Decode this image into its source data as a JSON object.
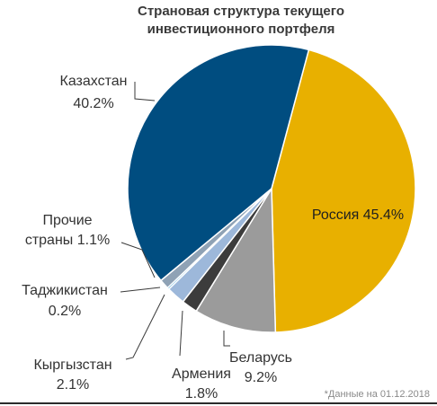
{
  "chart_data": {
    "type": "pie",
    "title_lines": [
      "Страновая структура текущего",
      "инвестиционного портфеля"
    ],
    "slices": [
      {
        "name": "Россия",
        "value": 45.4,
        "value_label": "45.4%",
        "color": "#E8B000"
      },
      {
        "name": "Беларусь",
        "value": 9.2,
        "value_label": "9.2%",
        "color": "#9B9B9B"
      },
      {
        "name": "Армения",
        "value": 1.8,
        "value_label": "1.8%",
        "color": "#3C3C3C"
      },
      {
        "name": "Кыргызстан",
        "value": 2.1,
        "value_label": "2.1%",
        "color": "#9DB8DA"
      },
      {
        "name": "Таджикистан",
        "value": 0.2,
        "value_label": "0.2%",
        "color": "#1E8FCF"
      },
      {
        "name": "Прочие страны",
        "value": 1.1,
        "value_label": "1.1%",
        "color": "#8FA2B5"
      },
      {
        "name": "Казахстан",
        "value": 40.2,
        "value_label": "40.2%",
        "color": "#004D80"
      }
    ],
    "label_texts": {
      "russia": "Россия 45.4%",
      "belarus_name": "Беларусь",
      "belarus_value": "9.2%",
      "armenia_name": "Армения",
      "armenia_value": "1.8%",
      "kyrgyzstan_name": "Кыргызстан",
      "kyrgyzstan_value": "2.1%",
      "tajikistan_name": "Таджикистан",
      "tajikistan_value": "0.2%",
      "others_line1": "Прочие",
      "others_line2": "страны 1.1%",
      "kazakhstan_name": "Казахстан",
      "kazakhstan_value": "40.2%"
    },
    "note": "*Данные на 01.12.2018"
  }
}
